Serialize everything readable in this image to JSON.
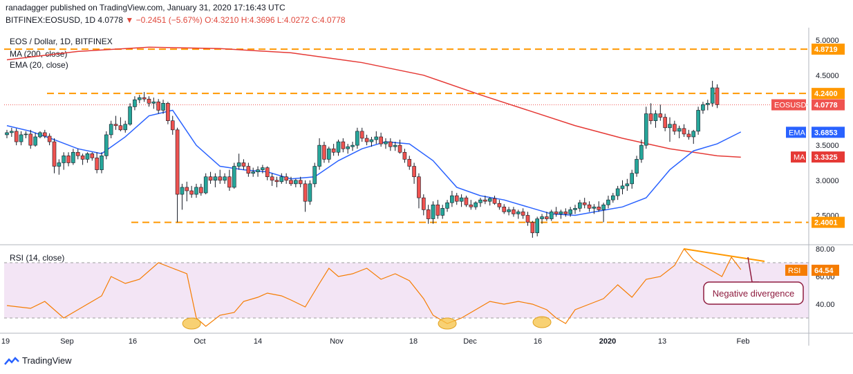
{
  "header": {
    "publisher": "ranadagger published on TradingView.com, January 31, 2020 17:16:43 UTC",
    "symbol": "BITFINEX:EOSUSD, 1D",
    "last": "4.0778",
    "change": "−0.2451 (−5.67%)",
    "ohlc": "O:4.3210 H:4.3696 L:4.0272 C:4.0778"
  },
  "footer": {
    "brand": "TradingView"
  },
  "colors": {
    "up": "#26a69a",
    "down": "#ef5350",
    "ma": "#e53935",
    "ema": "#2962ff",
    "level": "#ff9800",
    "rsi": "#f57c00",
    "rsi_band": "#f3e5f5"
  },
  "chart_data": [
    {
      "type": "candlestick",
      "title": "EOS / Dollar, 1D, BITFINEX",
      "indicators_legend": [
        "MA (200, close)",
        "EMA (20, close)"
      ],
      "x_ticks": [
        "19",
        "Sep",
        "16",
        "Oct",
        "14",
        "Nov",
        "18",
        "Dec",
        "16",
        "2020",
        "13",
        "Feb"
      ],
      "ylim": [
        2.1,
        5.1
      ],
      "y_ticks": [
        "5.0000",
        "4.5000",
        "3.5000",
        "3.0000",
        "2.5000"
      ],
      "horizontal_levels": [
        "4.8719",
        "4.2400",
        "2.4001"
      ],
      "price_tags": [
        {
          "label": "EOSUSD",
          "value": "4.0778"
        },
        {
          "label": "EMA",
          "value": "3.6853"
        },
        {
          "label": "MA",
          "value": "3.3325"
        }
      ],
      "ohlc": [
        [
          3.65,
          3.72,
          3.6,
          3.68
        ],
        [
          3.68,
          3.75,
          3.62,
          3.7
        ],
        [
          3.7,
          3.74,
          3.5,
          3.55
        ],
        [
          3.55,
          3.7,
          3.5,
          3.65
        ],
        [
          3.65,
          3.7,
          3.6,
          3.66
        ],
        [
          3.66,
          3.72,
          3.45,
          3.5
        ],
        [
          3.5,
          3.68,
          3.48,
          3.62
        ],
        [
          3.62,
          3.7,
          3.6,
          3.68
        ],
        [
          3.68,
          3.72,
          3.6,
          3.63
        ],
        [
          3.63,
          3.67,
          3.5,
          3.55
        ],
        [
          3.55,
          3.6,
          3.1,
          3.2
        ],
        [
          3.2,
          3.3,
          3.08,
          3.25
        ],
        [
          3.25,
          3.4,
          3.15,
          3.35
        ],
        [
          3.35,
          3.4,
          3.2,
          3.25
        ],
        [
          3.25,
          3.45,
          3.22,
          3.4
        ],
        [
          3.4,
          3.45,
          3.3,
          3.35
        ],
        [
          3.35,
          3.38,
          3.22,
          3.3
        ],
        [
          3.3,
          3.4,
          3.25,
          3.38
        ],
        [
          3.38,
          3.4,
          3.28,
          3.32
        ],
        [
          3.32,
          3.4,
          3.1,
          3.15
        ],
        [
          3.15,
          3.4,
          3.1,
          3.35
        ],
        [
          3.35,
          3.7,
          3.3,
          3.65
        ],
        [
          3.65,
          3.85,
          3.6,
          3.8
        ],
        [
          3.8,
          3.92,
          3.72,
          3.78
        ],
        [
          3.78,
          3.9,
          3.7,
          3.72
        ],
        [
          3.72,
          3.85,
          3.68,
          3.8
        ],
        [
          3.8,
          4.1,
          3.78,
          4.05
        ],
        [
          4.05,
          4.2,
          4.0,
          4.15
        ],
        [
          4.15,
          4.22,
          4.1,
          4.18
        ],
        [
          4.18,
          4.26,
          4.12,
          4.16
        ],
        [
          4.16,
          4.2,
          4.05,
          4.1
        ],
        [
          4.1,
          4.18,
          4.02,
          4.12
        ],
        [
          4.12,
          4.16,
          3.95,
          4.0
        ],
        [
          4.0,
          4.15,
          3.95,
          4.1
        ],
        [
          4.1,
          4.12,
          3.8,
          3.85
        ],
        [
          3.85,
          3.92,
          3.65,
          3.72
        ],
        [
          3.72,
          3.75,
          2.4,
          2.8
        ],
        [
          2.8,
          2.95,
          2.58,
          2.9
        ],
        [
          2.9,
          2.98,
          2.7,
          2.85
        ],
        [
          2.85,
          2.92,
          2.75,
          2.8
        ],
        [
          2.8,
          2.95,
          2.75,
          2.9
        ],
        [
          2.9,
          2.95,
          2.78,
          2.82
        ],
        [
          2.82,
          3.1,
          2.8,
          3.05
        ],
        [
          3.05,
          3.12,
          2.95,
          3.0
        ],
        [
          3.0,
          3.1,
          2.9,
          3.05
        ],
        [
          3.05,
          3.15,
          2.95,
          3.0
        ],
        [
          3.0,
          3.1,
          2.95,
          3.05
        ],
        [
          3.05,
          3.15,
          2.85,
          2.9
        ],
        [
          2.9,
          3.25,
          2.88,
          3.2
        ],
        [
          3.2,
          3.38,
          3.15,
          3.25
        ],
        [
          3.25,
          3.3,
          3.15,
          3.2
        ],
        [
          3.2,
          3.25,
          3.05,
          3.1
        ],
        [
          3.1,
          3.18,
          3.05,
          3.12
        ],
        [
          3.12,
          3.2,
          3.05,
          3.15
        ],
        [
          3.15,
          3.22,
          3.1,
          3.18
        ],
        [
          3.18,
          3.2,
          3.0,
          3.05
        ],
        [
          3.05,
          3.1,
          2.92,
          3.0
        ],
        [
          3.0,
          3.05,
          2.9,
          2.98
        ],
        [
          2.98,
          3.1,
          2.95,
          3.05
        ],
        [
          3.05,
          3.1,
          2.95,
          3.0
        ],
        [
          3.0,
          3.05,
          2.92,
          2.95
        ],
        [
          2.95,
          3.02,
          2.9,
          3.0
        ],
        [
          3.0,
          3.05,
          2.9,
          2.95
        ],
        [
          2.95,
          3.0,
          2.55,
          2.7
        ],
        [
          2.7,
          3.0,
          2.65,
          2.95
        ],
        [
          2.95,
          3.25,
          2.9,
          3.2
        ],
        [
          3.2,
          3.6,
          3.15,
          3.5
        ],
        [
          3.5,
          3.55,
          3.25,
          3.3
        ],
        [
          3.3,
          3.48,
          3.25,
          3.45
        ],
        [
          3.45,
          3.52,
          3.35,
          3.4
        ],
        [
          3.4,
          3.58,
          3.35,
          3.55
        ],
        [
          3.55,
          3.6,
          3.4,
          3.45
        ],
        [
          3.45,
          3.52,
          3.38,
          3.48
        ],
        [
          3.48,
          3.55,
          3.42,
          3.5
        ],
        [
          3.5,
          3.75,
          3.45,
          3.7
        ],
        [
          3.7,
          3.75,
          3.55,
          3.6
        ],
        [
          3.6,
          3.65,
          3.5,
          3.55
        ],
        [
          3.55,
          3.62,
          3.48,
          3.58
        ],
        [
          3.58,
          3.7,
          3.52,
          3.62
        ],
        [
          3.62,
          3.68,
          3.48,
          3.52
        ],
        [
          3.52,
          3.6,
          3.45,
          3.55
        ],
        [
          3.55,
          3.6,
          3.42,
          3.48
        ],
        [
          3.48,
          3.55,
          3.42,
          3.5
        ],
        [
          3.5,
          3.58,
          3.38,
          3.4
        ],
        [
          3.4,
          3.45,
          3.25,
          3.3
        ],
        [
          3.3,
          3.35,
          3.15,
          3.2
        ],
        [
          3.2,
          3.25,
          2.95,
          3.05
        ],
        [
          3.05,
          3.1,
          2.6,
          2.75
        ],
        [
          2.75,
          2.8,
          2.5,
          2.58
        ],
        [
          2.58,
          2.65,
          2.38,
          2.45
        ],
        [
          2.45,
          2.7,
          2.38,
          2.65
        ],
        [
          2.65,
          2.72,
          2.45,
          2.5
        ],
        [
          2.5,
          2.65,
          2.45,
          2.6
        ],
        [
          2.6,
          2.72,
          2.55,
          2.68
        ],
        [
          2.68,
          2.85,
          2.62,
          2.78
        ],
        [
          2.78,
          2.82,
          2.65,
          2.7
        ],
        [
          2.7,
          2.8,
          2.62,
          2.75
        ],
        [
          2.75,
          2.78,
          2.62,
          2.65
        ],
        [
          2.65,
          2.72,
          2.58,
          2.62
        ],
        [
          2.62,
          2.7,
          2.58,
          2.68
        ],
        [
          2.68,
          2.75,
          2.62,
          2.72
        ],
        [
          2.72,
          2.78,
          2.66,
          2.7
        ],
        [
          2.7,
          2.76,
          2.64,
          2.74
        ],
        [
          2.74,
          2.78,
          2.65,
          2.67
        ],
        [
          2.67,
          2.72,
          2.58,
          2.62
        ],
        [
          2.62,
          2.66,
          2.52,
          2.55
        ],
        [
          2.55,
          2.62,
          2.5,
          2.58
        ],
        [
          2.58,
          2.62,
          2.48,
          2.52
        ],
        [
          2.52,
          2.58,
          2.45,
          2.55
        ],
        [
          2.55,
          2.6,
          2.45,
          2.5
        ],
        [
          2.5,
          2.55,
          2.35,
          2.4
        ],
        [
          2.4,
          2.42,
          2.18,
          2.25
        ],
        [
          2.25,
          2.48,
          2.2,
          2.45
        ],
        [
          2.45,
          2.52,
          2.38,
          2.48
        ],
        [
          2.48,
          2.55,
          2.42,
          2.45
        ],
        [
          2.45,
          2.58,
          2.42,
          2.55
        ],
        [
          2.55,
          2.62,
          2.48,
          2.52
        ],
        [
          2.52,
          2.58,
          2.45,
          2.55
        ],
        [
          2.55,
          2.6,
          2.48,
          2.52
        ],
        [
          2.52,
          2.62,
          2.48,
          2.58
        ],
        [
          2.58,
          2.65,
          2.52,
          2.6
        ],
        [
          2.6,
          2.72,
          2.55,
          2.68
        ],
        [
          2.68,
          2.75,
          2.6,
          2.65
        ],
        [
          2.65,
          2.7,
          2.55,
          2.6
        ],
        [
          2.6,
          2.66,
          2.52,
          2.62
        ],
        [
          2.62,
          2.7,
          2.55,
          2.58
        ],
        [
          2.58,
          2.68,
          2.4,
          2.65
        ],
        [
          2.65,
          2.78,
          2.6,
          2.72
        ],
        [
          2.72,
          2.82,
          2.68,
          2.78
        ],
        [
          2.78,
          2.92,
          2.72,
          2.88
        ],
        [
          2.88,
          3.0,
          2.8,
          2.92
        ],
        [
          2.92,
          3.02,
          2.85,
          2.95
        ],
        [
          2.95,
          3.15,
          2.88,
          3.1
        ],
        [
          3.1,
          3.35,
          3.05,
          3.3
        ],
        [
          3.3,
          3.58,
          3.25,
          3.5
        ],
        [
          3.5,
          4.05,
          3.45,
          3.95
        ],
        [
          3.95,
          4.1,
          3.8,
          3.85
        ],
        [
          3.85,
          4.0,
          3.75,
          3.95
        ],
        [
          3.95,
          4.08,
          3.85,
          3.9
        ],
        [
          3.9,
          3.95,
          3.7,
          3.75
        ],
        [
          3.75,
          3.9,
          3.55,
          3.8
        ],
        [
          3.8,
          3.85,
          3.65,
          3.7
        ],
        [
          3.7,
          3.78,
          3.6,
          3.74
        ],
        [
          3.74,
          3.8,
          3.62,
          3.66
        ],
        [
          3.66,
          3.72,
          3.58,
          3.62
        ],
        [
          3.62,
          3.72,
          3.52,
          3.7
        ],
        [
          3.7,
          4.05,
          3.65,
          4.0
        ],
        [
          4.0,
          4.12,
          3.95,
          4.08
        ],
        [
          4.08,
          4.15,
          4.0,
          4.1
        ],
        [
          4.1,
          4.42,
          4.05,
          4.32
        ],
        [
          4.32,
          4.37,
          4.03,
          4.08
        ]
      ],
      "ma_200": [
        [
          0,
          4.72
        ],
        [
          15,
          4.84
        ],
        [
          30,
          4.9
        ],
        [
          45,
          4.88
        ],
        [
          60,
          4.82
        ],
        [
          75,
          4.68
        ],
        [
          88,
          4.5
        ],
        [
          100,
          4.22
        ],
        [
          110,
          4.0
        ],
        [
          120,
          3.78
        ],
        [
          130,
          3.6
        ],
        [
          140,
          3.45
        ],
        [
          150,
          3.35
        ],
        [
          155,
          3.33
        ]
      ],
      "ema_20": [
        [
          0,
          3.78
        ],
        [
          5,
          3.7
        ],
        [
          10,
          3.58
        ],
        [
          15,
          3.45
        ],
        [
          20,
          3.38
        ],
        [
          25,
          3.62
        ],
        [
          30,
          3.92
        ],
        [
          35,
          4.0
        ],
        [
          40,
          3.5
        ],
        [
          45,
          3.2
        ],
        [
          50,
          3.15
        ],
        [
          55,
          3.12
        ],
        [
          60,
          3.02
        ],
        [
          65,
          3.05
        ],
        [
          70,
          3.28
        ],
        [
          75,
          3.45
        ],
        [
          80,
          3.55
        ],
        [
          85,
          3.52
        ],
        [
          90,
          3.28
        ],
        [
          95,
          2.9
        ],
        [
          100,
          2.78
        ],
        [
          105,
          2.72
        ],
        [
          110,
          2.62
        ],
        [
          115,
          2.52
        ],
        [
          120,
          2.5
        ],
        [
          125,
          2.56
        ],
        [
          130,
          2.62
        ],
        [
          135,
          2.75
        ],
        [
          140,
          3.15
        ],
        [
          145,
          3.42
        ],
        [
          150,
          3.52
        ],
        [
          155,
          3.69
        ]
      ]
    },
    {
      "type": "line",
      "title": "RSI (14, close)",
      "ylim": [
        20,
        82
      ],
      "y_ticks": [
        "80.00",
        "60.00",
        "40.00"
      ],
      "band": [
        30,
        70
      ],
      "last_label": {
        "label": "RSI",
        "value": "64.54"
      },
      "values": [
        [
          0,
          39
        ],
        [
          5,
          37
        ],
        [
          8,
          42
        ],
        [
          12,
          30
        ],
        [
          16,
          38
        ],
        [
          20,
          46
        ],
        [
          22,
          60
        ],
        [
          25,
          55
        ],
        [
          28,
          58
        ],
        [
          32,
          70
        ],
        [
          35,
          66
        ],
        [
          38,
          62
        ],
        [
          40,
          30
        ],
        [
          42,
          24
        ],
        [
          45,
          32
        ],
        [
          48,
          34
        ],
        [
          50,
          42
        ],
        [
          53,
          45
        ],
        [
          55,
          48
        ],
        [
          58,
          46
        ],
        [
          60,
          43
        ],
        [
          63,
          38
        ],
        [
          66,
          55
        ],
        [
          68,
          66
        ],
        [
          70,
          60
        ],
        [
          73,
          62
        ],
        [
          76,
          66
        ],
        [
          79,
          58
        ],
        [
          82,
          62
        ],
        [
          85,
          57
        ],
        [
          88,
          44
        ],
        [
          90,
          32
        ],
        [
          93,
          26
        ],
        [
          96,
          30
        ],
        [
          99,
          36
        ],
        [
          102,
          42
        ],
        [
          105,
          40
        ],
        [
          108,
          42
        ],
        [
          111,
          40
        ],
        [
          114,
          36
        ],
        [
          116,
          30
        ],
        [
          118,
          26
        ],
        [
          120,
          36
        ],
        [
          123,
          40
        ],
        [
          126,
          44
        ],
        [
          129,
          54
        ],
        [
          132,
          45
        ],
        [
          135,
          58
        ],
        [
          138,
          60
        ],
        [
          141,
          68
        ],
        [
          143,
          80
        ],
        [
          145,
          72
        ],
        [
          148,
          66
        ],
        [
          151,
          60
        ],
        [
          153,
          74
        ],
        [
          155,
          65
        ]
      ],
      "annotation": "Negative divergence",
      "divergence_line": [
        [
          143,
          80
        ],
        [
          160,
          71
        ]
      ]
    }
  ]
}
